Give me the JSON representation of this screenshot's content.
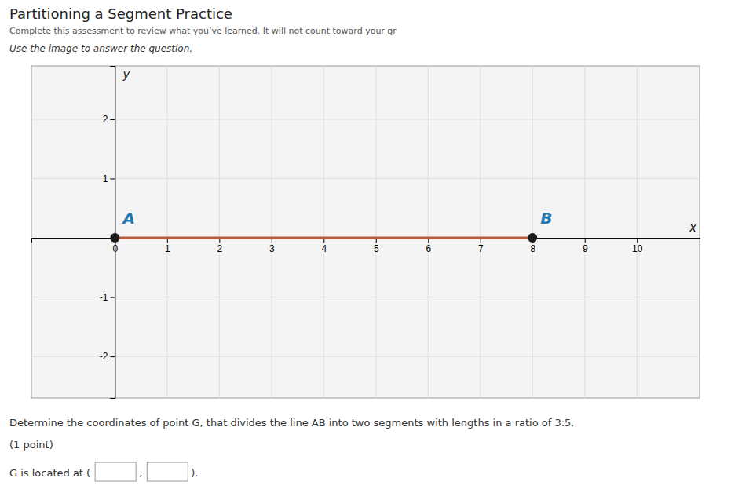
{
  "chart_data": {
    "type": "line",
    "title": "Partitioning a Segment Practice",
    "subtitle": "Complete this assessment to review what you’ve learned. It will not count toward your gr",
    "annotations": [
      "Use the image to answer the question.",
      "Determine the coordinates of point G, that divides the line AB into two segments with lengths in a ratio of 3:5.",
      "(1 point)",
      "G is located at (",
      ",",
      ")."
    ],
    "x_label": "x",
    "y_label": "y",
    "xlim": [
      -1.6,
      11.2
    ],
    "ylim": [
      -2.7,
      2.9
    ],
    "xticks": [
      0,
      1,
      2,
      3,
      4,
      5,
      6,
      7,
      8,
      9,
      10
    ],
    "yticks": [
      -2,
      -1,
      1,
      2
    ],
    "grid": true,
    "series": [
      {
        "type": "line",
        "color": "#b85c40",
        "x": [
          0,
          8
        ],
        "values": [
          0,
          0
        ]
      },
      {
        "type": "scatter",
        "color": "#1a1a1a",
        "marker": "circle",
        "x": [
          0,
          8
        ],
        "values": [
          0,
          0
        ],
        "labels": [
          "A",
          "B"
        ]
      }
    ]
  }
}
